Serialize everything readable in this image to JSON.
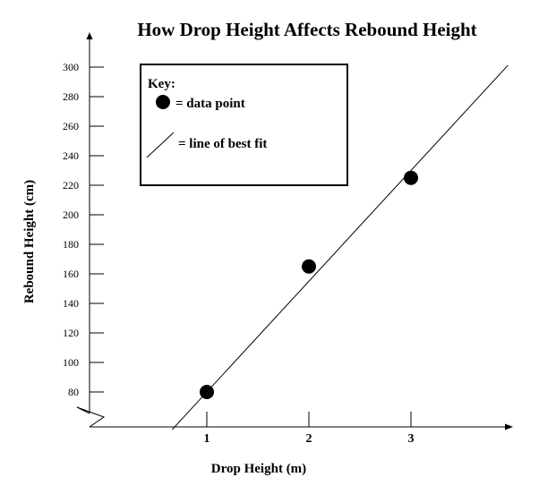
{
  "chart_data": {
    "type": "scatter",
    "title": "How Drop Height Affects Rebound Height",
    "xlabel": "Drop Height (m)",
    "ylabel": "Rebound Height (cm)",
    "x_ticks": [
      1,
      2,
      3
    ],
    "y_ticks": [
      80,
      100,
      120,
      140,
      160,
      180,
      200,
      220,
      240,
      260,
      280,
      300
    ],
    "ylim": [
      80,
      300
    ],
    "y_axis_break": true,
    "grid": false,
    "points": [
      {
        "x": 1,
        "y": 80
      },
      {
        "x": 2,
        "y": 165
      },
      {
        "x": 3,
        "y": 225
      }
    ],
    "best_fit_line": {
      "slope": 75,
      "intercept": 5
    },
    "legend": {
      "title": "Key:",
      "placement": "top-left",
      "items": [
        {
          "symbol": "dot",
          "label": "= data point"
        },
        {
          "symbol": "line",
          "label": "= line of best fit"
        }
      ]
    },
    "colors": {
      "ink": "#000000",
      "background": "#ffffff"
    }
  }
}
